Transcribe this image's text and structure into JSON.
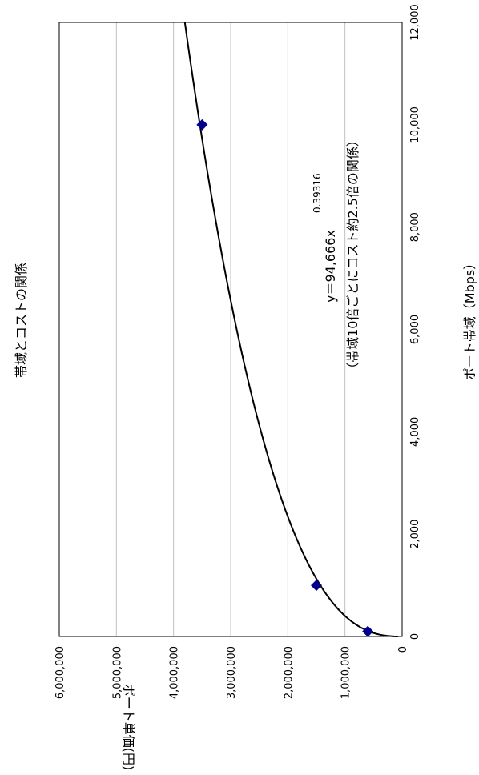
{
  "chart_data": {
    "type": "scatter",
    "title": "帯域とコストの関係",
    "xlabel": "ポート帯域（Mbps）",
    "ylabel": "ポート単価(円)",
    "xlim": [
      0,
      12000
    ],
    "ylim": [
      0,
      6000000
    ],
    "x_ticks": [
      "0",
      "2,000",
      "4,000",
      "6,000",
      "8,000",
      "10,000",
      "12,000"
    ],
    "y_ticks": [
      "0",
      "1,000,000",
      "2,000,000",
      "3,000,000",
      "4,000,000",
      "5,000,000",
      "6,000,000"
    ],
    "points": [
      {
        "x": 100,
        "y": 600000
      },
      {
        "x": 1000,
        "y": 1500000
      },
      {
        "x": 10000,
        "y": 3500000
      }
    ],
    "marker_color": "#00008B",
    "trendline": {
      "coef": 94666,
      "exponent": 0.39316,
      "color": "#000000"
    },
    "equation_main": "y＝94,666x",
    "equation_exponent": "0.39316",
    "annotation": "（帯域10倍ごとにコスト約2.5倍の関係）",
    "grid": true
  }
}
